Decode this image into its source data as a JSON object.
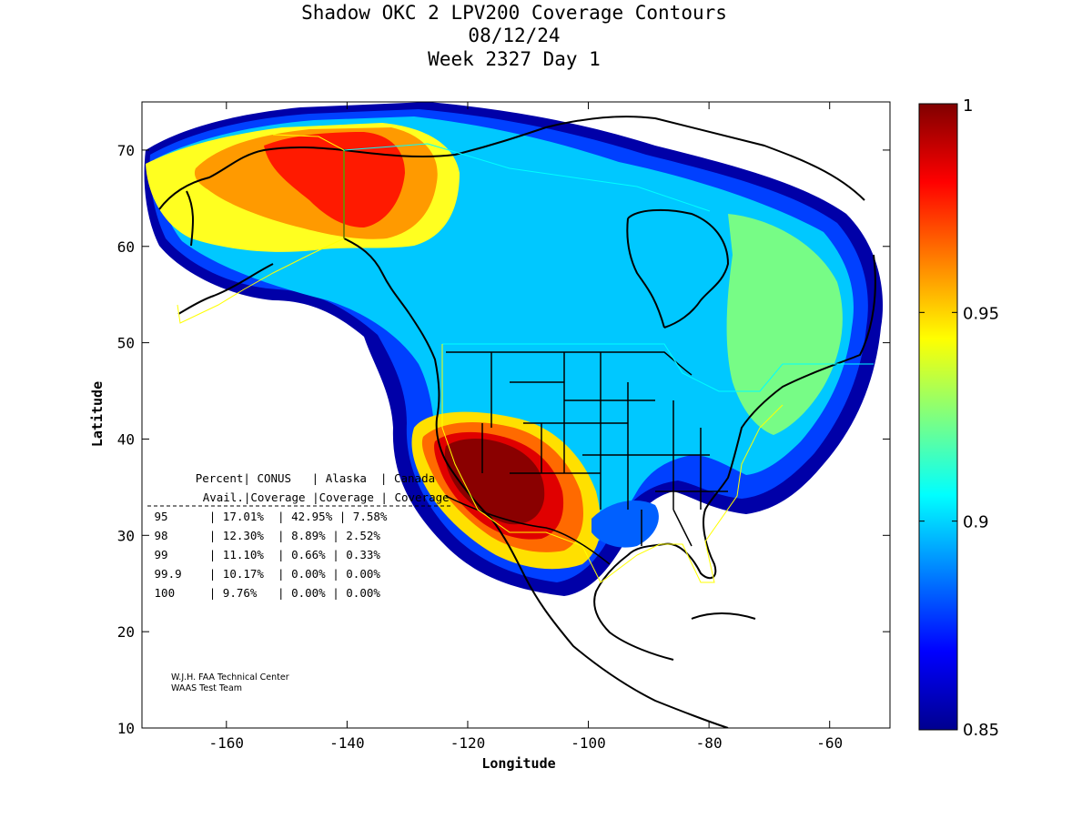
{
  "title": {
    "line1": "Shadow OKC 2 LPV200 Coverage Contours",
    "line2": "08/12/24",
    "line3": "Week 2327 Day 1"
  },
  "axes": {
    "xlabel": "Longitude",
    "ylabel": "Latitude",
    "x_ticks": [
      "-160",
      "-140",
      "-120",
      "-100",
      "-80",
      "-60"
    ],
    "y_ticks": [
      "70",
      "60",
      "50",
      "40",
      "30",
      "20",
      "10"
    ],
    "xlim": [
      -174,
      -50
    ],
    "ylim": [
      10,
      75
    ]
  },
  "colorbar": {
    "ticks": [
      "1",
      "0.95",
      "0.9",
      "0.85"
    ],
    "range": [
      0.85,
      1.0
    ],
    "colormap": "jet"
  },
  "table": {
    "header1": [
      "Percent",
      "CONUS",
      "Alaska",
      "Canada"
    ],
    "header2": [
      "Avail.",
      "Coverage",
      "Coverage",
      "Coverage"
    ],
    "rows": [
      [
        "95",
        "17.01%",
        "42.95%",
        "7.58%"
      ],
      [
        "98",
        "12.30%",
        "8.89%",
        "2.52%"
      ],
      [
        "99",
        "11.10%",
        "0.66%",
        "0.33%"
      ],
      [
        "99.9",
        "10.17%",
        "0.00%",
        "0.00%"
      ],
      [
        "100",
        "9.76%",
        "0.00%",
        "0.00%"
      ]
    ]
  },
  "credit": {
    "line1": "W.J.H. FAA Technical Center",
    "line2": "WAAS Test Team"
  },
  "colors": {
    "dark_blue": "#00008f",
    "blue": "#0000ff",
    "cyan": "#00ffff",
    "green": "#7fff7f",
    "yellow": "#ffff00",
    "orange": "#ff7f00",
    "red": "#ff0000",
    "dark_red": "#800000",
    "boundary_yellow": "#ffff00",
    "boundary_cyan": "#00ffff"
  }
}
